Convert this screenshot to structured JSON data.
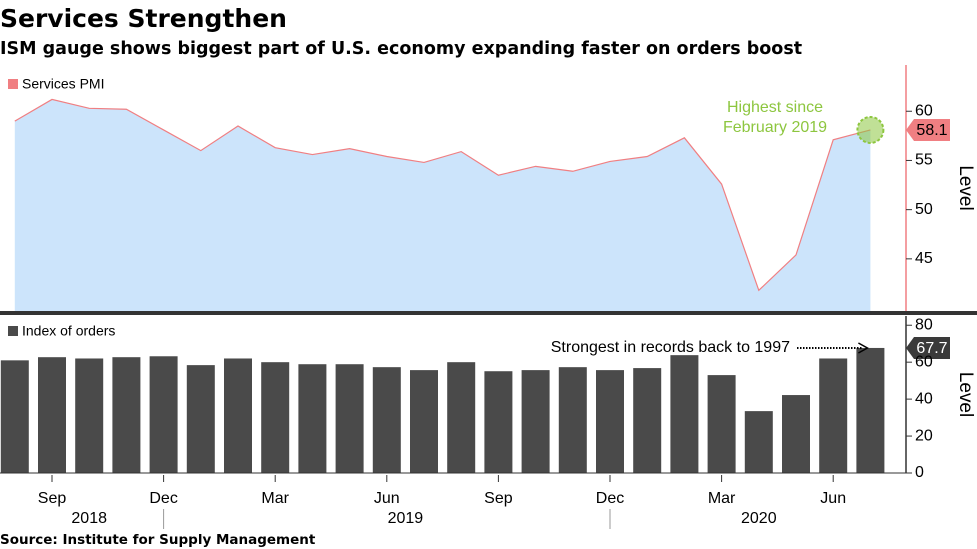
{
  "header": {
    "title": "Services Strengthen",
    "subtitle": "ISM gauge shows biggest part of U.S. economy expanding faster on orders boost"
  },
  "source": "Source: Institute for Supply Management",
  "chart_data": [
    {
      "type": "area",
      "x": [
        "2018-08",
        "2018-09",
        "2018-10",
        "2018-11",
        "2018-12",
        "2019-01",
        "2019-02",
        "2019-03",
        "2019-04",
        "2019-05",
        "2019-06",
        "2019-07",
        "2019-08",
        "2019-09",
        "2019-10",
        "2019-11",
        "2019-12",
        "2020-01",
        "2020-02",
        "2020-03",
        "2020-04",
        "2020-05",
        "2020-06",
        "2020-07"
      ],
      "series": [
        {
          "name": "Services PMI",
          "color": "#f07f82",
          "values": [
            59.0,
            61.2,
            60.3,
            60.2,
            58.1,
            56.0,
            58.5,
            56.3,
            55.6,
            56.2,
            55.4,
            54.8,
            55.9,
            53.5,
            54.4,
            53.9,
            54.9,
            55.4,
            57.3,
            52.6,
            41.8,
            45.4,
            57.1,
            58.1
          ]
        }
      ],
      "fill_color": "#cce4fb",
      "ylim": [
        39.7,
        64.7
      ],
      "yticks": [
        45,
        50,
        55,
        60
      ],
      "ylabel": "Level",
      "annotation": [
        "Highest since",
        "February 2019"
      ],
      "annotation_color": "#8dc63f"
    },
    {
      "type": "bar",
      "x": [
        "2018-08",
        "2018-09",
        "2018-10",
        "2018-11",
        "2018-12",
        "2019-01",
        "2019-02",
        "2019-03",
        "2019-04",
        "2019-05",
        "2019-06",
        "2019-07",
        "2019-08",
        "2019-09",
        "2019-10",
        "2019-11",
        "2019-12",
        "2020-01",
        "2020-02",
        "2020-03",
        "2020-04",
        "2020-05",
        "2020-06",
        "2020-07"
      ],
      "series": [
        {
          "name": "Index of orders",
          "color": "#4a4a4a",
          "values": [
            61.0,
            62.7,
            62.0,
            62.7,
            63.2,
            58.4,
            62.0,
            60.0,
            58.9,
            58.9,
            57.3,
            55.7,
            60.0,
            55.1,
            55.7,
            57.3,
            55.7,
            56.8,
            63.8,
            53.0,
            33.5,
            42.2,
            62.0,
            67.7
          ]
        }
      ],
      "ylim": [
        0,
        85
      ],
      "yticks": [
        0,
        20,
        40,
        60,
        80
      ],
      "ylabel": "Level",
      "annotation": "Strongest in records back to 1997",
      "xticks": [
        {
          "value": "2018-09",
          "label": "Sep"
        },
        {
          "value": "2018-12",
          "label": "Dec"
        },
        {
          "value": "2019-03",
          "label": "Mar"
        },
        {
          "value": "2019-06",
          "label": "Jun"
        },
        {
          "value": "2019-09",
          "label": "Sep"
        },
        {
          "value": "2019-12",
          "label": "Dec"
        },
        {
          "value": "2020-03",
          "label": "Mar"
        },
        {
          "value": "2020-06",
          "label": "Jun"
        }
      ],
      "years": [
        "2018",
        "2019",
        "2020"
      ]
    }
  ]
}
